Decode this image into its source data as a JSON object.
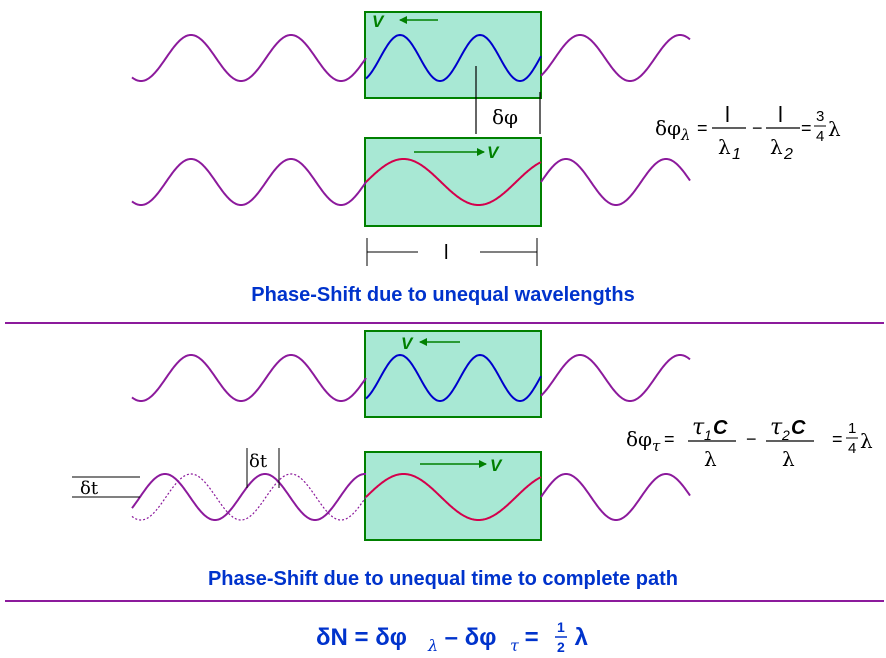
{
  "colors": {
    "purple": "#8c1a9c",
    "blue": "#0000cc",
    "red": "#d4004c",
    "box_fill": "#a8e8d4",
    "box_stroke": "#008000",
    "arrow": "#008000",
    "caption": "#0033cc",
    "divider": "#8c1a9c"
  },
  "panel1": {
    "v_top": "V",
    "v_bottom": "V",
    "delta_phi": "δφ",
    "length_label": "l",
    "formula": {
      "lhs": "δφ",
      "lhs_sub": "λ",
      "eq1": "=",
      "frac1_num": "l",
      "frac1_den": "λ",
      "frac1_den_sub": "1",
      "minus": "−",
      "frac2_num": "l",
      "frac2_den": "λ",
      "frac2_den_sub": "2",
      "eq2": "=",
      "frac3_num": "3",
      "frac3_den": "4",
      "tail": "λ"
    },
    "caption": "Phase-Shift due to unequal wavelengths"
  },
  "panel2": {
    "v_top": "V",
    "v_bottom": "V",
    "delta_t_left": "δt",
    "delta_t_mid": "δt",
    "formula": {
      "lhs": "δφ",
      "lhs_sub": "τ",
      "eq1": "=",
      "frac1_num_tau": "τ",
      "frac1_num_sub": "1",
      "frac1_num_c": "C",
      "frac1_den": "λ",
      "minus": "−",
      "frac2_num_tau": "τ",
      "frac2_num_sub": "2",
      "frac2_num_c": "C",
      "frac2_den": "λ",
      "eq2": "=",
      "frac3_num": "1",
      "frac3_den": "4",
      "tail": "λ"
    },
    "caption": "Phase-Shift due to unequal time to complete path"
  },
  "final": {
    "lhs": "δN = δφ",
    "sub1": "λ",
    "mid": " – δφ",
    "sub2": "τ",
    "eq": " = ",
    "frac_num": "1",
    "frac_den": "2",
    "tail": " λ"
  }
}
